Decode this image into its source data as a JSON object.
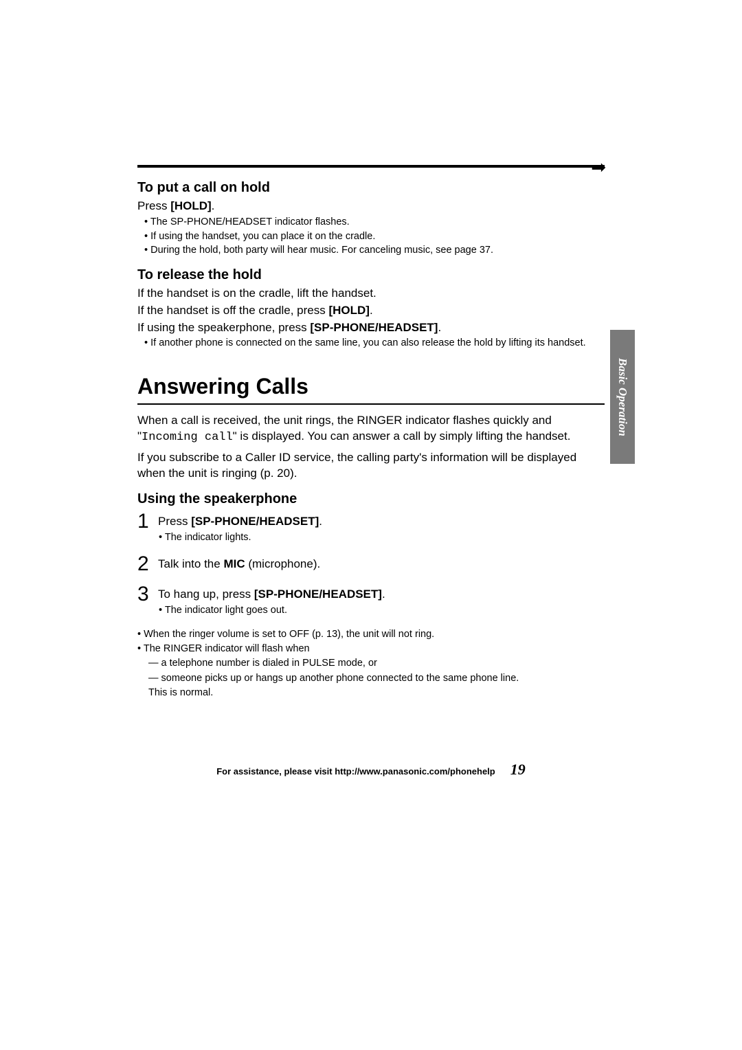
{
  "sideTab": "Basic Operation",
  "arrowGlyph": "➡",
  "hold": {
    "heading": "To put a call on hold",
    "press_prefix": "Press ",
    "press_button": "[HOLD]",
    "press_suffix": ".",
    "bullets": [
      "• The SP-PHONE/HEADSET indicator flashes.",
      "• If using the handset, you can place it on the cradle.",
      "• During the hold, both party will hear music. For canceling music, see page 37."
    ]
  },
  "release": {
    "heading": "To release the hold",
    "line1": "If the handset is on the cradle, lift the handset.",
    "line2_prefix": "If the handset is off the cradle, press ",
    "line2_button": "[HOLD]",
    "line2_suffix": ".",
    "line3_prefix": "If using the speakerphone, press ",
    "line3_button": "[SP-PHONE/HEADSET]",
    "line3_suffix": ".",
    "bullet": "• If another phone is connected on the same line, you can also release the hold by lifting its handset."
  },
  "answering": {
    "heading": "Answering Calls",
    "p1_a": "When a call is received, the unit rings, the RINGER indicator flashes quickly and \"",
    "p1_mono": "Incoming call",
    "p1_b": "\" is displayed. You can answer a call by simply lifting the handset.",
    "p2": "If you subscribe to a Caller ID service, the calling party's information will be displayed when the unit is ringing (p. 20)."
  },
  "speaker": {
    "heading": "Using the speakerphone",
    "steps": [
      {
        "num": "1",
        "prefix": "Press ",
        "bold": "[SP-PHONE/HEADSET]",
        "suffix": ".",
        "sub": "• The indicator lights."
      },
      {
        "num": "2",
        "prefix": "Talk into the ",
        "bold": "MIC",
        "suffix": " (microphone).",
        "sub": ""
      },
      {
        "num": "3",
        "prefix": "To hang up, press ",
        "bold": "[SP-PHONE/HEADSET]",
        "suffix": ".",
        "sub": "• The indicator light goes out."
      }
    ]
  },
  "notes": {
    "b1": "• When the ringer volume is set to OFF (p. 13), the unit will not ring.",
    "b2": "• The RINGER indicator will flash when",
    "d1": "— a telephone number is dialed in PULSE mode, or",
    "d2": "— someone picks up or hangs up another phone connected to the same phone line.",
    "plain": "This is normal."
  },
  "footer": {
    "assist": "For assistance, please visit http://www.panasonic.com/phonehelp",
    "pageNumber": "19"
  }
}
